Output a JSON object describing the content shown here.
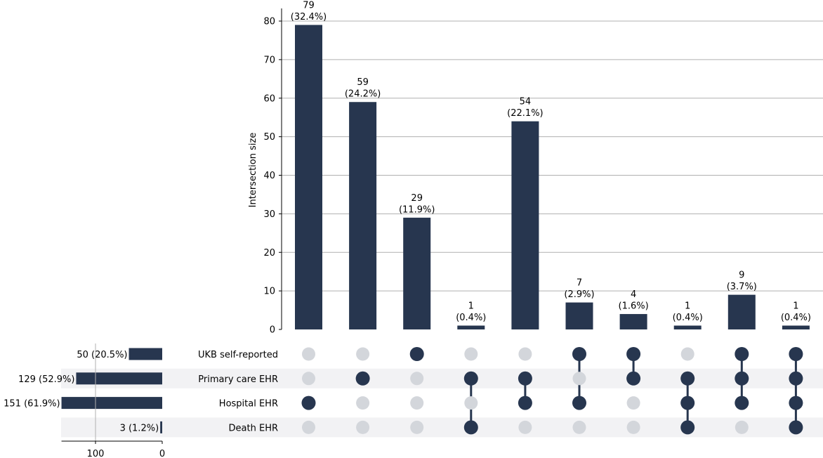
{
  "chart_data": {
    "type": "bar",
    "subtype": "upset",
    "ylabel": "Intersection size",
    "ylim": [
      0,
      83
    ],
    "yticks": [
      0,
      10,
      20,
      30,
      40,
      50,
      60,
      70,
      80
    ],
    "grid": true,
    "bar_color": "#27364f",
    "inactive_dot_color": "#d3d6db",
    "stripe_color": "#f2f2f4",
    "sets": [
      {
        "name": "UKB self-reported",
        "size": 50,
        "label": "50 (20.5%)"
      },
      {
        "name": "Primary care EHR",
        "size": 129,
        "label": "129 (52.9%)"
      },
      {
        "name": "Hospital EHR",
        "size": 151,
        "label": "151 (61.9%)"
      },
      {
        "name": "Death EHR",
        "size": 3,
        "label": "3 (1.2%)"
      }
    ],
    "set_size_axis": {
      "ticks": [
        100,
        0
      ],
      "max": 151,
      "reversed": true
    },
    "intersections": [
      {
        "value": 79,
        "label": "(32.4%)",
        "members": [
          2
        ]
      },
      {
        "value": 59,
        "label": "(24.2%)",
        "members": [
          1
        ]
      },
      {
        "value": 29,
        "label": "(11.9%)",
        "members": [
          0
        ]
      },
      {
        "value": 1,
        "label": "(0.4%)",
        "members": [
          1,
          3
        ]
      },
      {
        "value": 54,
        "label": "(22.1%)",
        "members": [
          1,
          2
        ]
      },
      {
        "value": 7,
        "label": "(2.9%)",
        "members": [
          0,
          2
        ]
      },
      {
        "value": 4,
        "label": "(1.6%)",
        "members": [
          0,
          1
        ]
      },
      {
        "value": 1,
        "label": "(0.4%)",
        "members": [
          1,
          2,
          3
        ]
      },
      {
        "value": 9,
        "label": "(3.7%)",
        "members": [
          0,
          1,
          2
        ]
      },
      {
        "value": 1,
        "label": "(0.4%)",
        "members": [
          0,
          1,
          2,
          3
        ]
      }
    ]
  }
}
